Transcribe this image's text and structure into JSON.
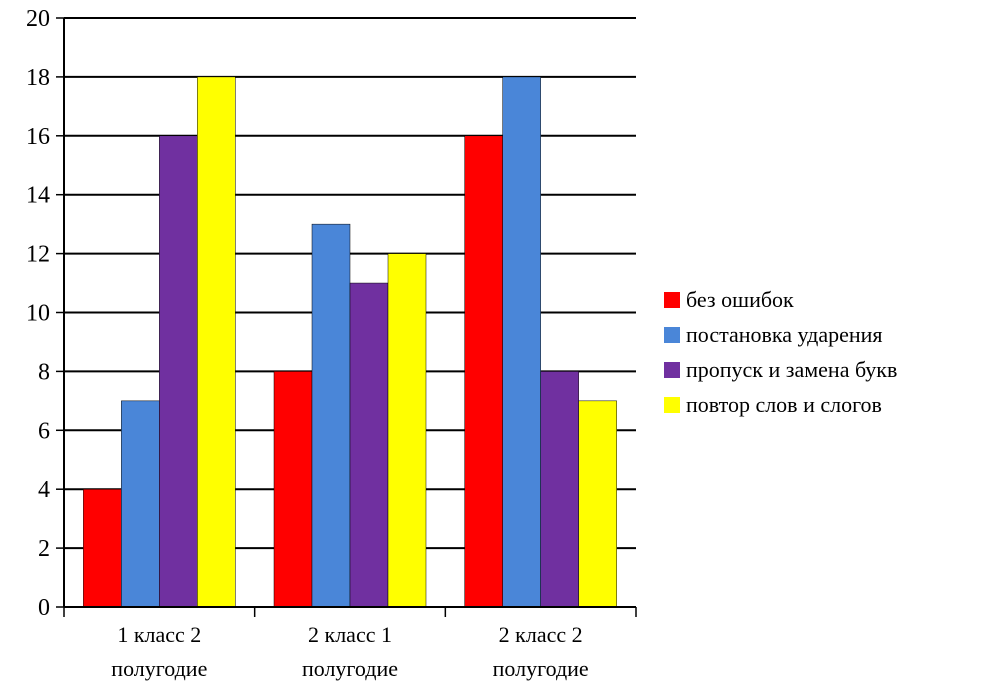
{
  "chart_data": {
    "type": "bar",
    "categories": [
      [
        "1 класс 2",
        "полугодие"
      ],
      [
        "2 класс 1",
        "полугодие"
      ],
      [
        "2 класс 2",
        "полугодие"
      ]
    ],
    "series": [
      {
        "name": "без ошибок",
        "color": "#ff0000",
        "values": [
          4,
          8,
          16
        ]
      },
      {
        "name": "постановка ударения",
        "color": "#4a86d8",
        "values": [
          7,
          13,
          18
        ]
      },
      {
        "name": "пропуск и замена букв",
        "color": "#7030a0",
        "values": [
          16,
          11,
          8
        ]
      },
      {
        "name": "повтор слов и слогов",
        "color": "#ffff00",
        "values": [
          18,
          12,
          7
        ]
      }
    ],
    "ylim": [
      0,
      20
    ],
    "yticks": [
      0,
      2,
      4,
      6,
      8,
      10,
      12,
      14,
      16,
      18,
      20
    ],
    "grid": true,
    "legend_position": "right"
  }
}
